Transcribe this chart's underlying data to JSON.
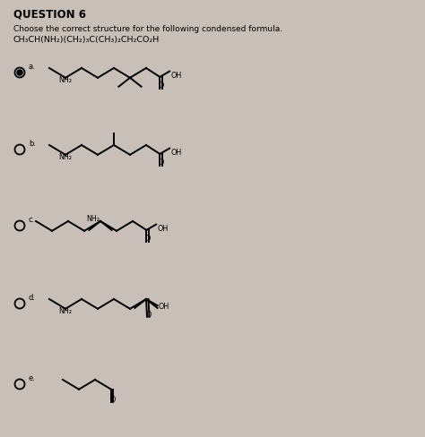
{
  "title": "QUESTION 6",
  "subtitle": "Choose the correct structure for the following condensed formula.",
  "formula": "CH₃CH(NH₂)(CH₂)₃C(CH₃)₂CH₂CO₂H",
  "bg_color": "#c8c0b8",
  "text_color": "#000000",
  "fig_width": 4.74,
  "fig_height": 4.89,
  "dpi": 100
}
